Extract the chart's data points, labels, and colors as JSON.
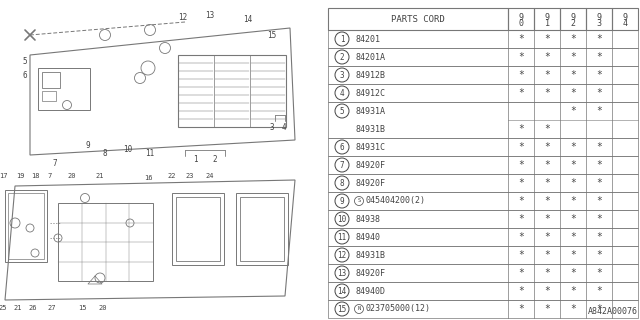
{
  "watermark": "A842A00076",
  "rows": [
    {
      "num": "1",
      "code": "84201",
      "s90": true,
      "s91": true,
      "s92": true,
      "s93": true,
      "s94": false
    },
    {
      "num": "2",
      "code": "84201A",
      "s90": true,
      "s91": true,
      "s92": true,
      "s93": true,
      "s94": false
    },
    {
      "num": "3",
      "code": "84912B",
      "s90": true,
      "s91": true,
      "s92": true,
      "s93": true,
      "s94": false
    },
    {
      "num": "4",
      "code": "84912C",
      "s90": true,
      "s91": true,
      "s92": true,
      "s93": true,
      "s94": false
    },
    {
      "num": "5",
      "code": "84931A",
      "s90": false,
      "s91": false,
      "s92": true,
      "s93": true,
      "s94": false,
      "sub": true,
      "subcode": "84931B",
      "ss90": true,
      "ss91": true,
      "ss92": false,
      "ss93": false,
      "ss94": false
    },
    {
      "num": "6",
      "code": "84931C",
      "s90": true,
      "s91": true,
      "s92": true,
      "s93": true,
      "s94": false
    },
    {
      "num": "7",
      "code": "84920F",
      "s90": true,
      "s91": true,
      "s92": true,
      "s93": true,
      "s94": false
    },
    {
      "num": "8",
      "code": "84920F",
      "s90": true,
      "s91": true,
      "s92": true,
      "s93": true,
      "s94": false
    },
    {
      "num": "9",
      "code": "045404200(2)",
      "s90": true,
      "s91": true,
      "s92": true,
      "s93": true,
      "s94": false,
      "prefix": "S"
    },
    {
      "num": "10",
      "code": "84938",
      "s90": true,
      "s91": true,
      "s92": true,
      "s93": true,
      "s94": false
    },
    {
      "num": "11",
      "code": "84940",
      "s90": true,
      "s91": true,
      "s92": true,
      "s93": true,
      "s94": false
    },
    {
      "num": "12",
      "code": "84931B",
      "s90": true,
      "s91": true,
      "s92": true,
      "s93": true,
      "s94": false
    },
    {
      "num": "13",
      "code": "84920F",
      "s90": true,
      "s91": true,
      "s92": true,
      "s93": true,
      "s94": false
    },
    {
      "num": "14",
      "code": "84940D",
      "s90": true,
      "s91": true,
      "s92": true,
      "s93": true,
      "s94": false
    },
    {
      "num": "15",
      "code": "023705000(12)",
      "s90": true,
      "s91": true,
      "s92": true,
      "s93": true,
      "s94": false,
      "prefix": "N"
    }
  ],
  "bg": "#ffffff",
  "lc": "#777777",
  "tc": "#444444"
}
